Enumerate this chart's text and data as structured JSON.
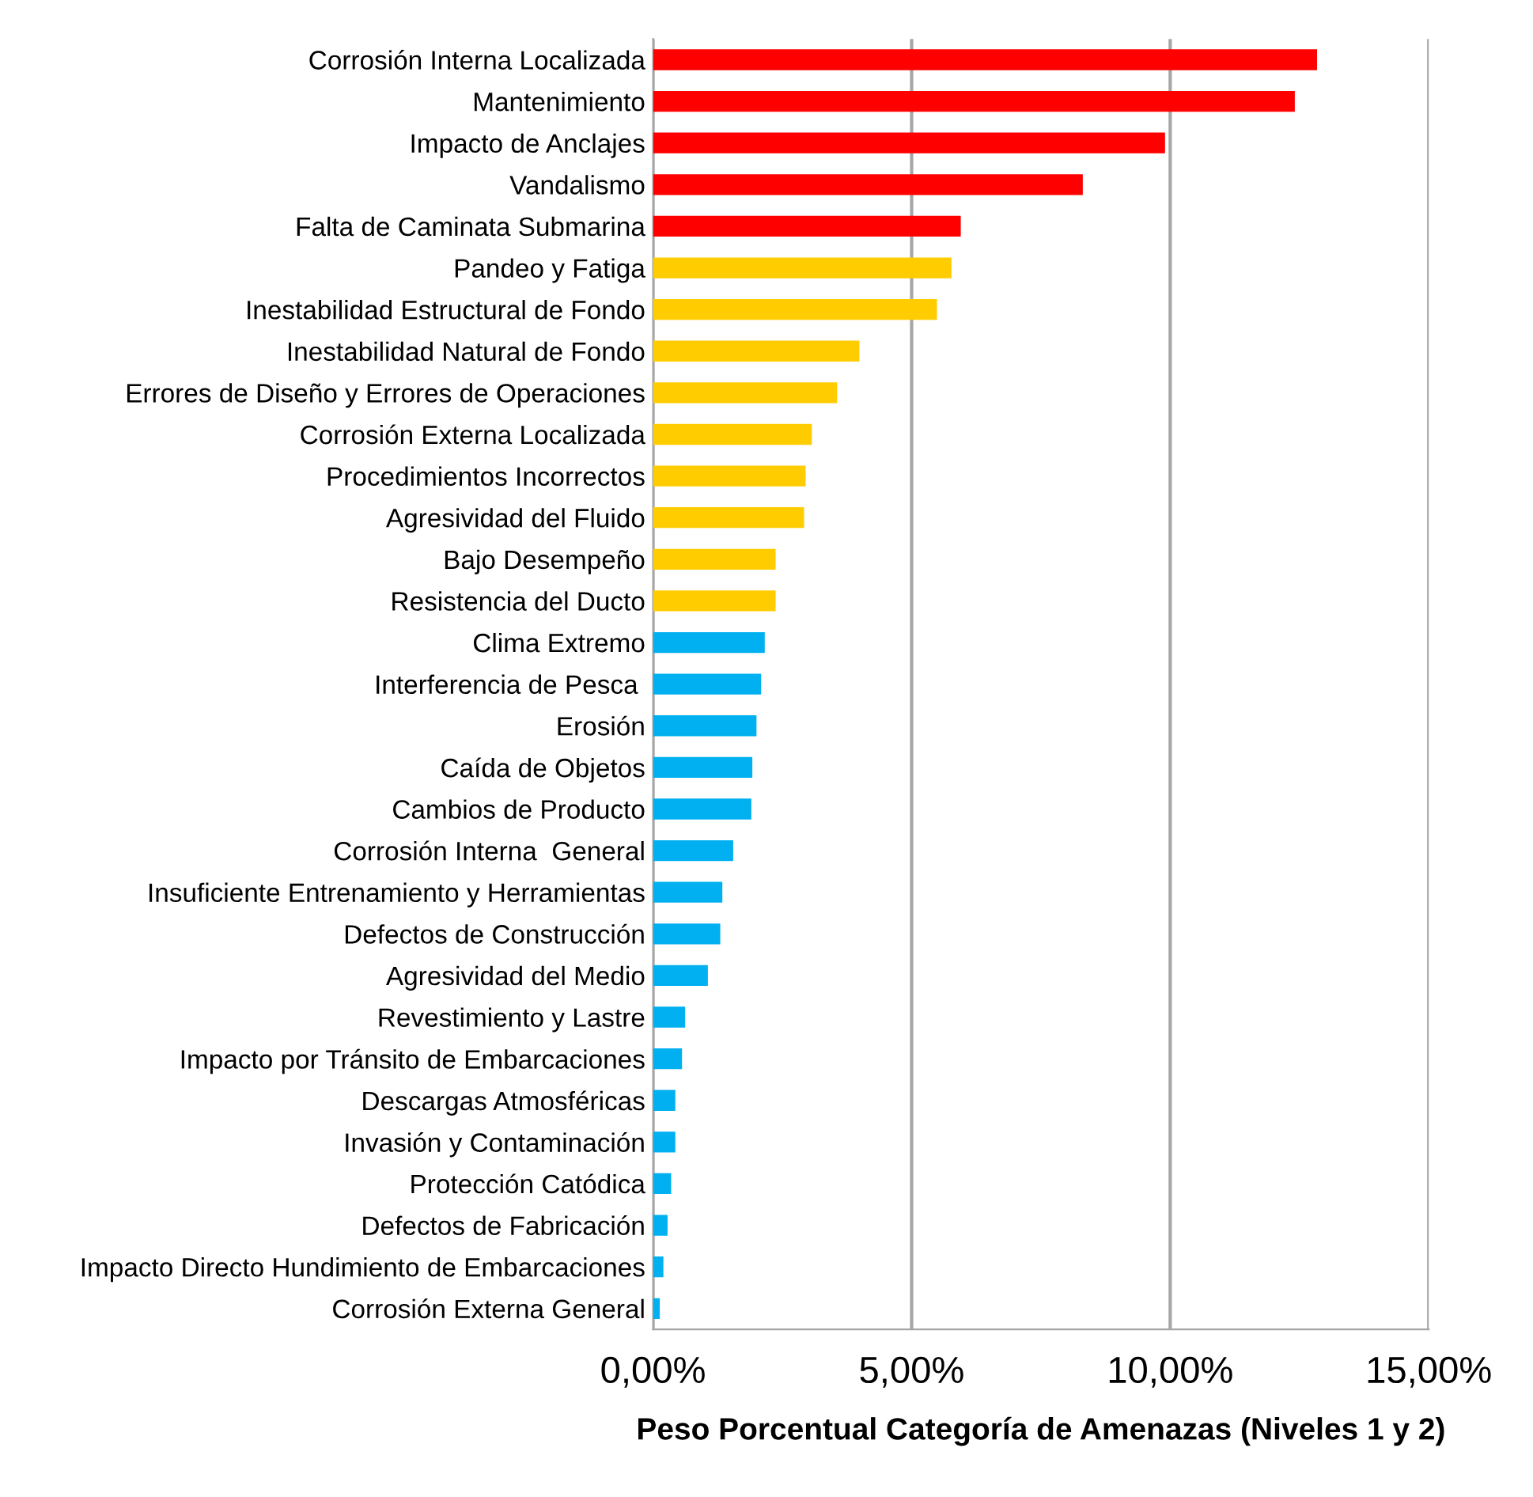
{
  "chart_data": {
    "type": "bar",
    "orientation": "horizontal",
    "xlabel": "Peso Porcentual Categoría de Amenazas (Niveles 1 y 2)",
    "categories": [
      "Corrosión Interna Localizada",
      "Mantenimiento",
      "Impacto de Anclajes",
      "Vandalismo",
      "Falta de Caminata Submarina",
      "Pandeo y Fatiga",
      "Inestabilidad Estructural de Fondo",
      "Inestabilidad Natural de Fondo",
      "Errores de Diseño y Errores de Operaciones",
      "Corrosión Externa Localizada",
      "Procedimientos Incorrectos",
      "Agresividad del Fluido",
      "Bajo Desempeño",
      "Resistencia del Ducto",
      "Clima Extremo",
      "Interferencia de Pesca ",
      "Erosión",
      "Caída de Objetos",
      "Cambios de Producto",
      "Corrosión Interna  General",
      "Insuficiente Entrenamiento y Herramientas",
      "Defectos de Construcción",
      "Agresividad del Medio",
      "Revestimiento y Lastre",
      "Impacto por Tránsito de Embarcaciones",
      "Descargas Atmosféricas",
      "Invasión y Contaminación",
      "Protección Catódica",
      "Defectos de Fabricación",
      "Impacto Directo Hundimiento de Embarcaciones",
      "Corrosión Externa General"
    ],
    "values": [
      12.84,
      12.41,
      9.9,
      8.31,
      5.95,
      5.77,
      5.49,
      3.99,
      3.56,
      3.07,
      2.95,
      2.92,
      2.37,
      2.37,
      2.16,
      2.09,
      2.0,
      1.92,
      1.9,
      1.55,
      1.34,
      1.3,
      1.06,
      0.62,
      0.56,
      0.43,
      0.43,
      0.35,
      0.28,
      0.2,
      0.13
    ],
    "colors": [
      "#ff0000",
      "#ff0000",
      "#ff0000",
      "#ff0000",
      "#ff0000",
      "#ffcc00",
      "#ffcc00",
      "#ffcc00",
      "#ffcc00",
      "#ffcc00",
      "#ffcc00",
      "#ffcc00",
      "#ffcc00",
      "#ffcc00",
      "#00b0f0",
      "#00b0f0",
      "#00b0f0",
      "#00b0f0",
      "#00b0f0",
      "#00b0f0",
      "#00b0f0",
      "#00b0f0",
      "#00b0f0",
      "#00b0f0",
      "#00b0f0",
      "#00b0f0",
      "#00b0f0",
      "#00b0f0",
      "#00b0f0",
      "#00b0f0",
      "#00b0f0"
    ],
    "xlim": [
      0,
      15
    ],
    "xticks": [
      {
        "value": 0,
        "label": "0,00%"
      },
      {
        "value": 5,
        "label": "5,00%"
      },
      {
        "value": 10,
        "label": "10,00%"
      },
      {
        "value": 15,
        "label": "15,00%"
      }
    ],
    "grid": "x"
  }
}
